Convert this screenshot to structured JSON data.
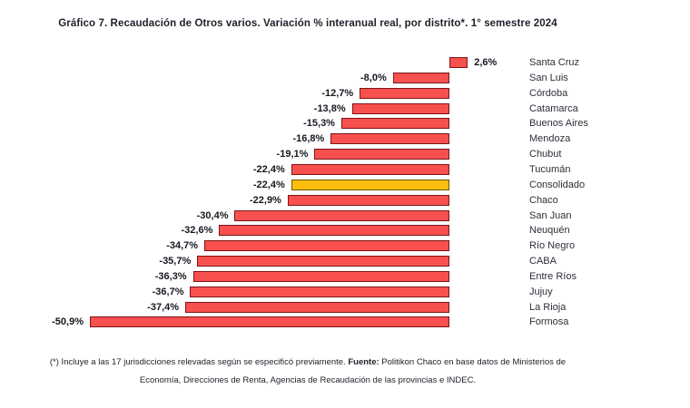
{
  "title": "Gráfico 7. Recaudación de Otros varios. Variación % interanual real, por distrito*. 1° semestre 2024",
  "chart_data": {
    "type": "bar",
    "orientation": "horizontal",
    "title": "Gráfico 7. Recaudación de Otros varios. Variación % interanual real, por distrito*. 1° semestre 2024",
    "categories": [
      "Santa Cruz",
      "San Luis",
      "Córdoba",
      "Catamarca",
      "Buenos Aires",
      "Mendoza",
      "Chubut",
      "Tucumán",
      "Consolidado",
      "Chaco",
      "San Juan",
      "Neuquén",
      "Río Negro",
      "CABA",
      "Entre Ríos",
      "Jujuy",
      "La Rioja",
      "Formosa"
    ],
    "values": [
      2.6,
      -8.0,
      -12.7,
      -13.8,
      -15.3,
      -16.8,
      -19.1,
      -22.4,
      -22.4,
      -22.9,
      -30.4,
      -32.6,
      -34.7,
      -35.7,
      -36.3,
      -36.7,
      -37.4,
      -50.9
    ],
    "value_labels": [
      "2,6%",
      "-8,0%",
      "-12,7%",
      "-13,8%",
      "-15,3%",
      "-16,8%",
      "-19,1%",
      "-22,4%",
      "-22,4%",
      "-22,9%",
      "-30,4%",
      "-32,6%",
      "-34,7%",
      "-35,7%",
      "-36,3%",
      "-36,7%",
      "-37,4%",
      "-50,9%"
    ],
    "unit": "%",
    "xlim": [
      -50.9,
      2.6
    ],
    "grid": false,
    "legend": false,
    "highlight_category": "Consolidado",
    "colors": {
      "bar_fill": "#f7504f",
      "bar_border": "#7e1416",
      "highlight_fill": "#fdbf0e",
      "highlight_border": "#6b5400",
      "text": "#20242c"
    }
  },
  "footnote": {
    "line1_prefix": "(*) Incluye a las 17 jurisdicciones relevadas según se especificó previamente. ",
    "source_label": "Fuente:",
    "line1_suffix": " Politikon Chaco en base datos de Ministerios de",
    "line2": "Economía, Direcciones de Renta, Agencias de Recaudación de las provincias e INDEC."
  }
}
